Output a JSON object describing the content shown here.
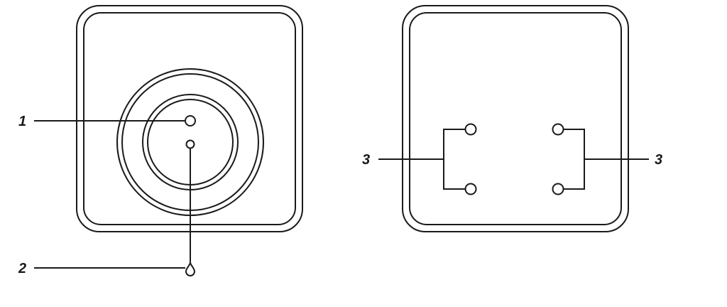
{
  "callouts": {
    "front_1": "1",
    "front_2": "2",
    "back_left_3": "3",
    "back_right_3": "3"
  },
  "colors": {
    "line": "#1a1a1a",
    "background": "#ffffff"
  }
}
